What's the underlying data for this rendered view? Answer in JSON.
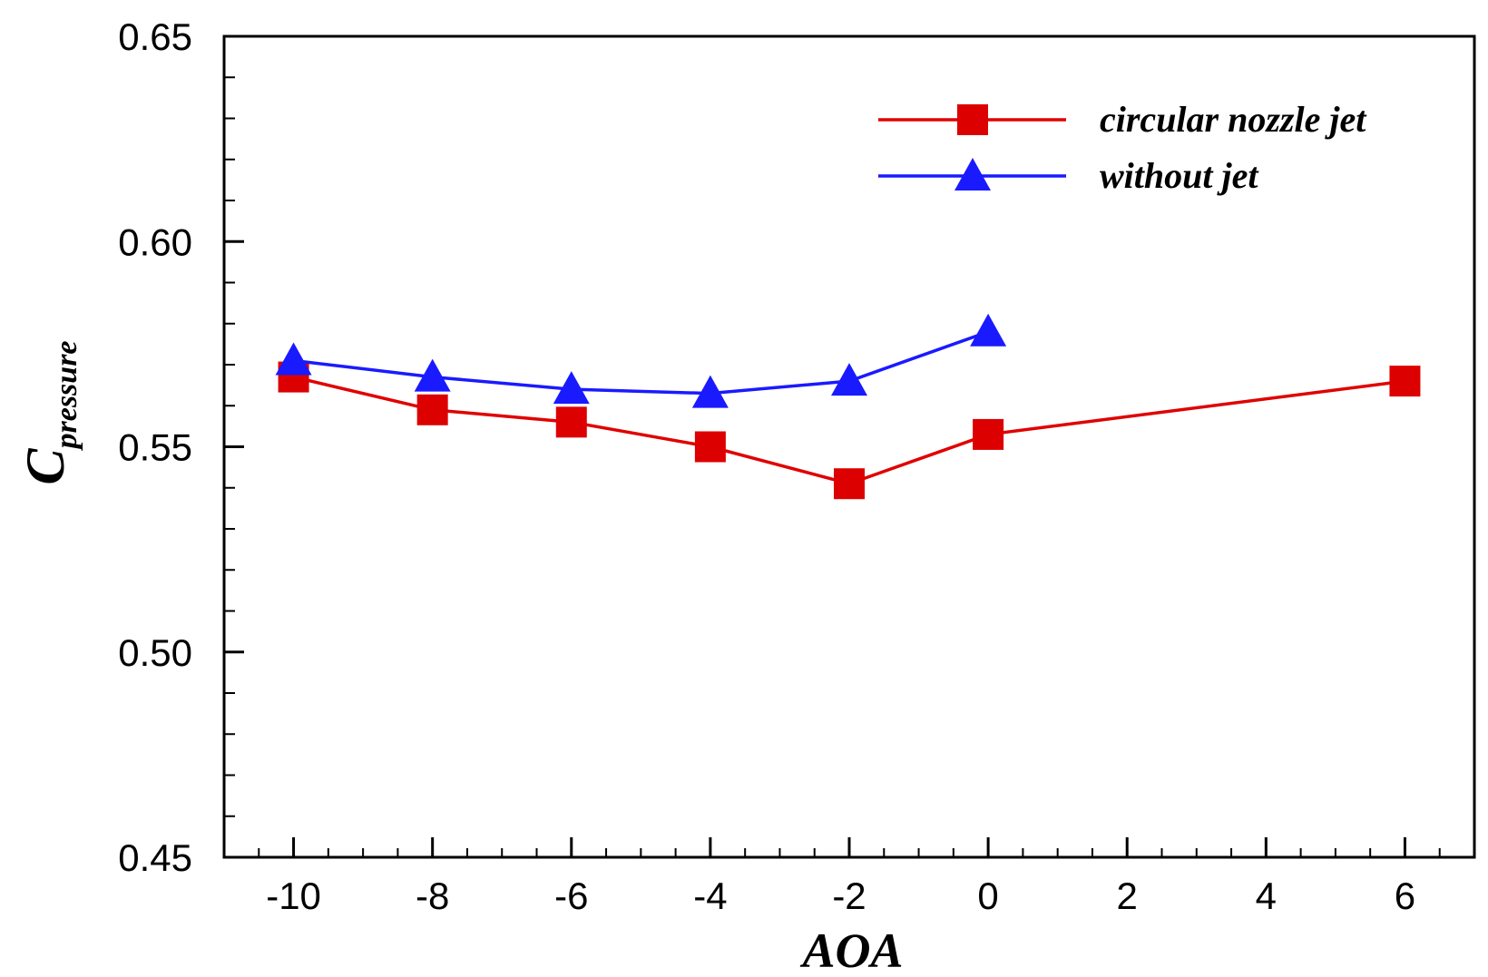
{
  "chart_data": {
    "type": "line",
    "xlabel": "AOA",
    "ylabel": {
      "main": "C",
      "subscript": "pressure"
    },
    "xlim": [
      -11,
      7
    ],
    "ylim": [
      0.45,
      0.65
    ],
    "x_ticks": [
      -10,
      -8,
      -6,
      -4,
      -2,
      0,
      2,
      4,
      6
    ],
    "x_tick_labels": [
      "-10",
      "-8",
      "-6",
      "-4",
      "-2",
      "0",
      "2",
      "4",
      "6"
    ],
    "y_ticks": [
      0.45,
      0.5,
      0.55,
      0.6,
      0.65
    ],
    "y_tick_labels": [
      "0.45",
      "0.50",
      "0.55",
      "0.60",
      "0.65"
    ],
    "grid": false,
    "legend_position": "top-right",
    "series": [
      {
        "name": "circular nozzle jet",
        "color": "#e00000",
        "marker_color": "#dd0000",
        "marker": "square",
        "x": [
          -10,
          -8,
          -6,
          -4,
          -2,
          0,
          6
        ],
        "y": [
          0.567,
          0.559,
          0.556,
          0.55,
          0.541,
          0.553,
          0.566
        ]
      },
      {
        "name": "without jet",
        "color": "#1a1aff",
        "marker_color": "#1a1aff",
        "marker": "triangle",
        "x": [
          -10,
          -8,
          -6,
          -4,
          -2,
          0
        ],
        "y": [
          0.571,
          0.567,
          0.564,
          0.563,
          0.566,
          0.578
        ]
      }
    ]
  }
}
